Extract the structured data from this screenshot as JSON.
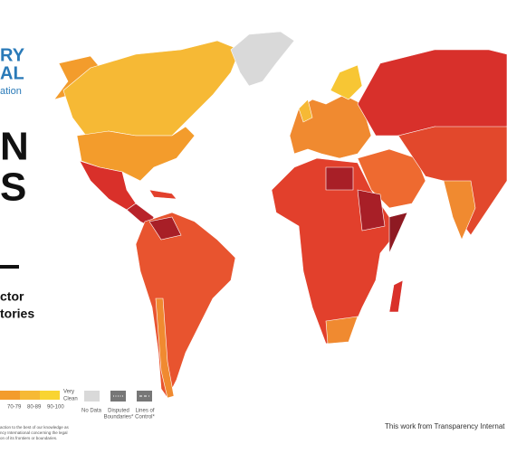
{
  "header": {
    "logo_lines": [
      "RY",
      "AL",
      "ation"
    ],
    "title_lines": [
      "N",
      "S"
    ],
    "subtitle_lines": [
      "ctor",
      "tories"
    ]
  },
  "legend": {
    "score_ranges": [
      "70-79",
      "80-89",
      "90-100"
    ],
    "clean_label": [
      "Very",
      "Clean"
    ],
    "no_data": "No Data",
    "disputed": [
      "Disputed",
      "Boundaries*"
    ],
    "lines_of_control": [
      "Lines of",
      "Control*"
    ]
  },
  "disclaimer": [
    "action to the best of our knowledge as",
    "ncy International concerning the legal",
    "on of its frontiers or boundaries."
  ],
  "credit": "This work from Transparency Internat"
}
